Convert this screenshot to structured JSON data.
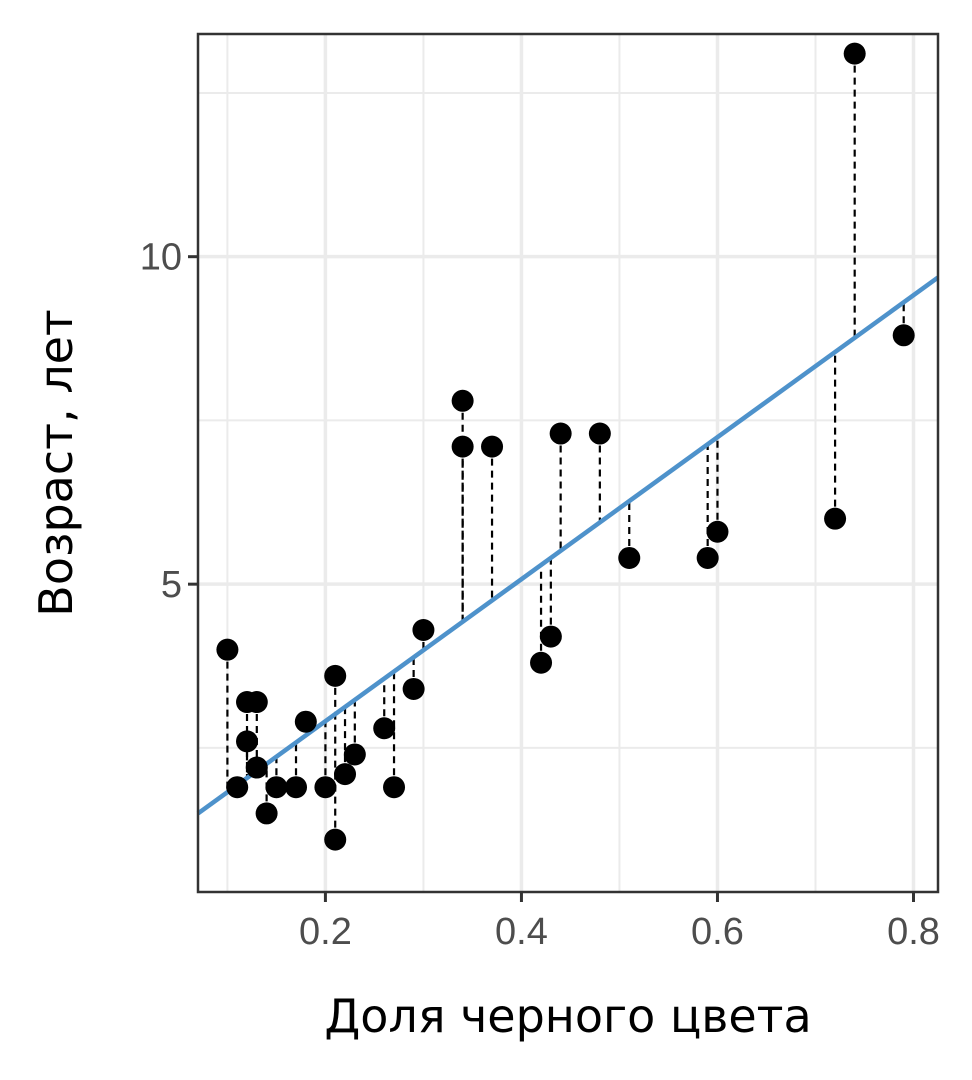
{
  "chart_data": {
    "type": "scatter",
    "xlabel": "Доля черного цвета",
    "ylabel": "Возраст, лет",
    "xlim": [
      0.07,
      0.825
    ],
    "ylim": [
      0.3,
      13.4
    ],
    "x_ticks": [
      0.2,
      0.4,
      0.6,
      0.8
    ],
    "x_tick_labels": [
      "0.2",
      "0.4",
      "0.6",
      "0.8"
    ],
    "y_ticks": [
      5,
      10
    ],
    "y_tick_labels": [
      "5",
      "10"
    ],
    "x_minor_ticks": [
      0.1,
      0.3,
      0.5,
      0.7
    ],
    "y_minor_ticks": [
      2.5,
      7.5,
      12.5
    ],
    "grid": true,
    "points": [
      {
        "x": 0.1,
        "y": 4.0
      },
      {
        "x": 0.11,
        "y": 1.9
      },
      {
        "x": 0.12,
        "y": 3.2
      },
      {
        "x": 0.12,
        "y": 2.6
      },
      {
        "x": 0.13,
        "y": 3.2
      },
      {
        "x": 0.13,
        "y": 2.2
      },
      {
        "x": 0.14,
        "y": 1.5
      },
      {
        "x": 0.15,
        "y": 1.9
      },
      {
        "x": 0.17,
        "y": 1.9
      },
      {
        "x": 0.18,
        "y": 2.9
      },
      {
        "x": 0.2,
        "y": 1.9
      },
      {
        "x": 0.21,
        "y": 3.6
      },
      {
        "x": 0.21,
        "y": 1.1
      },
      {
        "x": 0.22,
        "y": 2.1
      },
      {
        "x": 0.23,
        "y": 2.4
      },
      {
        "x": 0.26,
        "y": 2.8
      },
      {
        "x": 0.27,
        "y": 1.9
      },
      {
        "x": 0.29,
        "y": 3.4
      },
      {
        "x": 0.3,
        "y": 4.3
      },
      {
        "x": 0.34,
        "y": 7.8
      },
      {
        "x": 0.34,
        "y": 7.1
      },
      {
        "x": 0.37,
        "y": 7.1
      },
      {
        "x": 0.42,
        "y": 3.8
      },
      {
        "x": 0.43,
        "y": 4.2
      },
      {
        "x": 0.44,
        "y": 7.3
      },
      {
        "x": 0.48,
        "y": 7.3
      },
      {
        "x": 0.51,
        "y": 5.4
      },
      {
        "x": 0.59,
        "y": 5.4
      },
      {
        "x": 0.6,
        "y": 5.8
      },
      {
        "x": 0.72,
        "y": 6.0
      },
      {
        "x": 0.74,
        "y": 13.1
      },
      {
        "x": 0.79,
        "y": 8.8
      }
    ],
    "regression": {
      "intercept": 0.74,
      "slope": 10.84
    },
    "point_color": "#000000",
    "line_color": "#4e92cb",
    "residual_color": "#000000"
  }
}
